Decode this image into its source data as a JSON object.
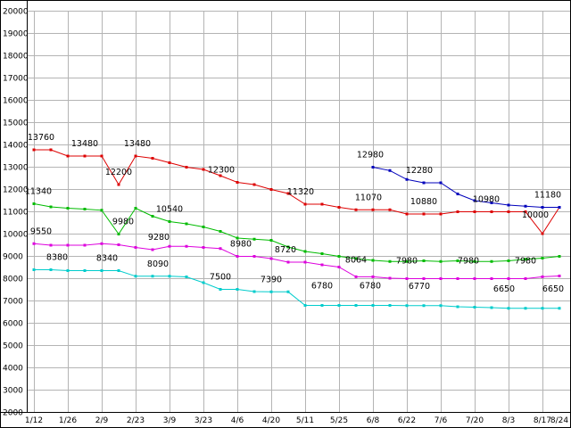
{
  "chart_data": {
    "type": "line",
    "title": "",
    "grid": true,
    "grid_color": "#b4b4b4",
    "axis_color": "#000000",
    "legend": "none",
    "y_axis": {
      "min": 2000,
      "max": 20000,
      "step": 1000,
      "tick_labels": [
        "20000",
        "19000",
        "18000",
        "17000",
        "16000",
        "15000",
        "14000",
        "13000",
        "12000",
        "11000",
        "10000",
        "9000",
        "8000",
        "7000",
        "6000",
        "5000",
        "4000",
        "3000",
        "2000"
      ]
    },
    "x_axis": {
      "ticks": [
        {
          "u": 0,
          "label": "1/12"
        },
        {
          "u": 1,
          "label": "1/26"
        },
        {
          "u": 2,
          "label": "2/9"
        },
        {
          "u": 3,
          "label": "2/23"
        },
        {
          "u": 4,
          "label": "3/9"
        },
        {
          "u": 5,
          "label": "3/23"
        },
        {
          "u": 6,
          "label": "4/6"
        },
        {
          "u": 7,
          "label": "4/20"
        },
        {
          "u": 8,
          "label": "5/11"
        },
        {
          "u": 9,
          "label": "5/25"
        },
        {
          "u": 10,
          "label": "6/8"
        },
        {
          "u": 11,
          "label": "6/22"
        },
        {
          "u": 12,
          "label": "7/6"
        },
        {
          "u": 13,
          "label": "7/20"
        },
        {
          "u": 14,
          "label": "8/3"
        },
        {
          "u": 15,
          "label": "8/17"
        },
        {
          "u": 15.5,
          "label": "8/24",
          "gridline": false
        }
      ]
    },
    "series": [
      {
        "name": "red",
        "color": "#dd0000",
        "points": [
          [
            0,
            13760
          ],
          [
            0.5,
            13760
          ],
          [
            1,
            13480
          ],
          [
            1.5,
            13480
          ],
          [
            2,
            13480
          ],
          [
            2.5,
            12200
          ],
          [
            3,
            13480
          ],
          [
            3.5,
            13380
          ],
          [
            4,
            13180
          ],
          [
            4.5,
            12980
          ],
          [
            5,
            12880
          ],
          [
            5.5,
            12600
          ],
          [
            6,
            12300
          ],
          [
            6.5,
            12200
          ],
          [
            7,
            11980
          ],
          [
            7.5,
            11800
          ],
          [
            8,
            11320
          ],
          [
            8.5,
            11320
          ],
          [
            9,
            11180
          ],
          [
            9.5,
            11070
          ],
          [
            10,
            11070
          ],
          [
            10.5,
            11070
          ],
          [
            11,
            10880
          ],
          [
            11.5,
            10880
          ],
          [
            12,
            10880
          ],
          [
            12.5,
            10980
          ],
          [
            13,
            10980
          ],
          [
            13.5,
            10980
          ],
          [
            14,
            10980
          ],
          [
            14.5,
            10980
          ],
          [
            15,
            10000
          ],
          [
            15.5,
            11180
          ]
        ],
        "labels": [
          {
            "u": 0,
            "v": 13760,
            "t": "13760",
            "dx": 8
          },
          {
            "u": 1.5,
            "v": 13480,
            "t": "13480",
            "dx": 0
          },
          {
            "u": 2.5,
            "v": 12200,
            "t": "12200",
            "dx": 0
          },
          {
            "u": 3,
            "v": 13480,
            "t": "13480",
            "dx": 2
          },
          {
            "u": 6,
            "v": 12300,
            "t": "12300",
            "dx": -18
          },
          {
            "u": 8,
            "v": 11320,
            "t": "11320",
            "dx": -5
          },
          {
            "u": 10,
            "v": 11070,
            "t": "11070",
            "dx": -5
          },
          {
            "u": 11.5,
            "v": 10880,
            "t": "10880",
            "dx": 0
          },
          {
            "u": 13.5,
            "v": 10980,
            "t": "10980",
            "dx": -6
          },
          {
            "u": 15,
            "v": 10000,
            "t": "10000",
            "dx": -8,
            "dy": -7
          },
          {
            "u": 15.5,
            "v": 11180,
            "t": "11180",
            "dx": -13
          }
        ]
      },
      {
        "name": "green",
        "color": "#00bb00",
        "points": [
          [
            0,
            11340
          ],
          [
            0.5,
            11200
          ],
          [
            1,
            11140
          ],
          [
            1.5,
            11100
          ],
          [
            2,
            11050
          ],
          [
            2.5,
            9980
          ],
          [
            3,
            11140
          ],
          [
            3.5,
            10780
          ],
          [
            4,
            10540
          ],
          [
            4.5,
            10440
          ],
          [
            5,
            10300
          ],
          [
            5.5,
            10100
          ],
          [
            6,
            9800
          ],
          [
            6.5,
            9750
          ],
          [
            7,
            9700
          ],
          [
            7.5,
            9400
          ],
          [
            8,
            9200
          ],
          [
            8.5,
            9100
          ],
          [
            9,
            8980
          ],
          [
            9.5,
            8880
          ],
          [
            10,
            8800
          ],
          [
            10.5,
            8750
          ],
          [
            11,
            8750
          ],
          [
            11.5,
            8780
          ],
          [
            12,
            8750
          ],
          [
            12.5,
            8780
          ],
          [
            13,
            8750
          ],
          [
            13.5,
            8750
          ],
          [
            14,
            8780
          ],
          [
            14.5,
            8850
          ],
          [
            15,
            8900
          ],
          [
            15.5,
            8980
          ]
        ],
        "labels": [
          {
            "u": 0,
            "v": 11340,
            "t": "11340",
            "dx": 5
          },
          {
            "u": 2.5,
            "v": 9980,
            "t": "9980",
            "dx": 5
          },
          {
            "u": 4,
            "v": 10540,
            "t": "10540",
            "dx": 0
          }
        ]
      },
      {
        "name": "magenta",
        "color": "#dd00dd",
        "points": [
          [
            0,
            9550
          ],
          [
            0.5,
            9480
          ],
          [
            1,
            9480
          ],
          [
            1.5,
            9480
          ],
          [
            2,
            9550
          ],
          [
            2.5,
            9500
          ],
          [
            3,
            9380
          ],
          [
            3.5,
            9280
          ],
          [
            4,
            9430
          ],
          [
            4.5,
            9430
          ],
          [
            5,
            9380
          ],
          [
            5.5,
            9330
          ],
          [
            6,
            8980
          ],
          [
            6.5,
            8980
          ],
          [
            7,
            8880
          ],
          [
            7.5,
            8720
          ],
          [
            8,
            8720
          ],
          [
            8.5,
            8600
          ],
          [
            9,
            8500
          ],
          [
            9.5,
            8064
          ],
          [
            10,
            8064
          ],
          [
            10.5,
            8000
          ],
          [
            11,
            7980
          ],
          [
            11.5,
            7980
          ],
          [
            12,
            7980
          ],
          [
            12.5,
            7980
          ],
          [
            13,
            7980
          ],
          [
            13.5,
            7980
          ],
          [
            14,
            7980
          ],
          [
            14.5,
            7980
          ],
          [
            15,
            8064
          ],
          [
            15.5,
            8100
          ]
        ],
        "labels": [
          {
            "u": 0,
            "v": 9550,
            "t": "9550",
            "dx": 8
          },
          {
            "u": 3.5,
            "v": 9280,
            "t": "9280",
            "dx": 7
          },
          {
            "u": 6,
            "v": 8980,
            "t": "8980",
            "dx": 4
          },
          {
            "u": 7.5,
            "v": 8720,
            "t": "8720",
            "dx": -3
          },
          {
            "u": 9.5,
            "v": 8064,
            "t": "8064",
            "dx": 0,
            "dy": -5
          },
          {
            "u": 11,
            "v": 7980,
            "t": "7980",
            "dx": 0,
            "dy": -6
          },
          {
            "u": 13,
            "v": 7980,
            "t": "7980",
            "dx": -7,
            "dy": -6
          },
          {
            "u": 14.5,
            "v": 7980,
            "t": "7980",
            "dx": 0,
            "dy": -6
          }
        ]
      },
      {
        "name": "cyan",
        "color": "#00cccc",
        "points": [
          [
            0,
            8380
          ],
          [
            0.5,
            8380
          ],
          [
            1,
            8340
          ],
          [
            1.5,
            8340
          ],
          [
            2,
            8340
          ],
          [
            2.5,
            8340
          ],
          [
            3,
            8090
          ],
          [
            3.5,
            8090
          ],
          [
            4,
            8090
          ],
          [
            4.5,
            8060
          ],
          [
            5,
            7800
          ],
          [
            5.5,
            7500
          ],
          [
            6,
            7500
          ],
          [
            6.5,
            7400
          ],
          [
            7,
            7390
          ],
          [
            7.5,
            7390
          ],
          [
            8,
            6780
          ],
          [
            8.5,
            6780
          ],
          [
            9,
            6780
          ],
          [
            9.5,
            6780
          ],
          [
            10,
            6780
          ],
          [
            10.5,
            6780
          ],
          [
            11,
            6770
          ],
          [
            11.5,
            6770
          ],
          [
            12,
            6770
          ],
          [
            12.5,
            6720
          ],
          [
            13,
            6700
          ],
          [
            13.5,
            6680
          ],
          [
            14,
            6650
          ],
          [
            14.5,
            6650
          ],
          [
            15,
            6650
          ],
          [
            15.5,
            6650
          ]
        ],
        "labels": [
          {
            "u": 0.5,
            "v": 8380,
            "t": "8380",
            "dx": 7
          },
          {
            "u": 2,
            "v": 8340,
            "t": "8340",
            "dx": 6
          },
          {
            "u": 3.5,
            "v": 8090,
            "t": "8090",
            "dx": 6
          },
          {
            "u": 5.5,
            "v": 7500,
            "t": "7500",
            "dx": 0
          },
          {
            "u": 7,
            "v": 7390,
            "t": "7390",
            "dx": 0
          },
          {
            "u": 8.5,
            "v": 6780,
            "t": "6780",
            "dx": 0,
            "dy": -8
          },
          {
            "u": 10,
            "v": 6780,
            "t": "6780",
            "dx": -3,
            "dy": -8
          },
          {
            "u": 11.5,
            "v": 6770,
            "t": "6770",
            "dx": -5,
            "dy": -8
          },
          {
            "u": 14,
            "v": 6650,
            "t": "6650",
            "dx": -5,
            "dy": -8
          },
          {
            "u": 15.5,
            "v": 6650,
            "t": "6650",
            "dx": -7,
            "dy": -8
          }
        ]
      },
      {
        "name": "blue",
        "color": "#0000bb",
        "points": [
          [
            10,
            12980
          ],
          [
            10.5,
            12830
          ],
          [
            11,
            12430
          ],
          [
            11.5,
            12280
          ],
          [
            12,
            12280
          ],
          [
            12.5,
            11780
          ],
          [
            13,
            11480
          ],
          [
            13.5,
            11380
          ],
          [
            14,
            11280
          ],
          [
            14.5,
            11230
          ],
          [
            15,
            11180
          ],
          [
            15.5,
            11180
          ]
        ],
        "labels": [
          {
            "u": 10,
            "v": 12980,
            "t": "12980",
            "dx": -3
          },
          {
            "u": 11.5,
            "v": 12280,
            "t": "12280",
            "dx": -5
          }
        ]
      }
    ]
  }
}
